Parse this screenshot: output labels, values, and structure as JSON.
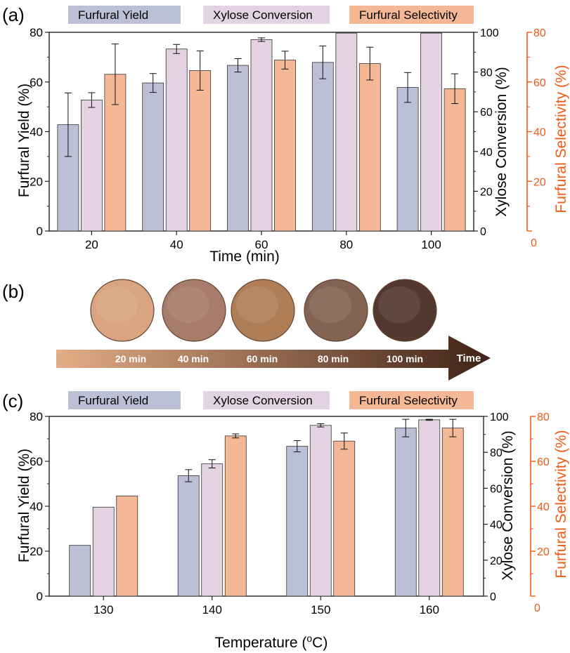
{
  "chart_data": [
    {
      "type": "bar",
      "panel_label": "(a)",
      "categories": [
        "20",
        "40",
        "60",
        "80",
        "100"
      ],
      "xlabel": "Time (min)",
      "ylabel_left": "Furfural Yield (%)",
      "ylabel_right1": "Xylose Conversion (%)",
      "ylabel_right2": "Furfural Selectivity (%)",
      "ylim_left": [
        0,
        80
      ],
      "ylim_right1": [
        0,
        100
      ],
      "ylim_right2": [
        0,
        80
      ],
      "yticks_left": [
        "0",
        "20",
        "40",
        "60",
        "80"
      ],
      "yticks_right1": [
        "0",
        "20",
        "40",
        "60",
        "80",
        "100"
      ],
      "yticks_right2": [
        "0",
        "20",
        "40",
        "60",
        "80"
      ],
      "legend_position": "top",
      "series": [
        {
          "name": "Furfural Yield",
          "color": "#bcc0d4",
          "axis": "left",
          "values": [
            42.8,
            59.6,
            66.7,
            67.9,
            57.8
          ],
          "errors": [
            12.8,
            3.8,
            2.7,
            6.6,
            6.0
          ]
        },
        {
          "name": "Xylose Conversion",
          "color": "#e3d2e1",
          "axis": "right1",
          "values": [
            65.9,
            91.6,
            96.3,
            99.6,
            99.6
          ],
          "errors": [
            3.7,
            2.3,
            0.9,
            0,
            0
          ]
        },
        {
          "name": "Furfural Selectivity",
          "color": "#f5b896",
          "axis": "right2",
          "values": [
            63.1,
            64.6,
            68.8,
            67.4,
            57.3
          ],
          "errors": [
            12.2,
            7.9,
            3.6,
            6.6,
            6.0
          ]
        }
      ]
    },
    {
      "type": "bar",
      "panel_label": "(c)",
      "categories": [
        "130",
        "140",
        "150",
        "160"
      ],
      "xlabel": "Temperature (oC)",
      "xlabel_main": "Temperature (",
      "xlabel_sup": "o",
      "xlabel_end": "C)",
      "ylabel_left": "Furfural Yield (%)",
      "ylabel_right1": "Xylose Conversion (%)",
      "ylabel_right2": "Furfural Selectivity (%)",
      "ylim_left": [
        0,
        80
      ],
      "ylim_right1": [
        0,
        100
      ],
      "ylim_right2": [
        0,
        80
      ],
      "yticks_left": [
        "0",
        "20",
        "40",
        "60",
        "80"
      ],
      "yticks_right1": [
        "0",
        "20",
        "40",
        "60",
        "80",
        "100"
      ],
      "yticks_right2": [
        "0",
        "20",
        "40",
        "60",
        "80"
      ],
      "legend_position": "top",
      "series": [
        {
          "name": "Furfural Yield",
          "color": "#bcc0d4",
          "axis": "left",
          "values": [
            22.6,
            53.6,
            66.7,
            74.8
          ],
          "errors": [
            0,
            2.7,
            2.5,
            3.9
          ]
        },
        {
          "name": "Xylose Conversion",
          "color": "#e3d2e1",
          "axis": "right1",
          "values": [
            49.5,
            73.6,
            95.0,
            98.1
          ],
          "errors": [
            0,
            2.3,
            0.9,
            0.3
          ]
        },
        {
          "name": "Furfural Selectivity",
          "color": "#f5b896",
          "axis": "right2",
          "values": [
            44.6,
            71.3,
            69.0,
            74.8
          ],
          "errors": [
            0,
            0.9,
            3.6,
            3.9
          ]
        }
      ]
    }
  ],
  "panel_b": {
    "label": "(b)",
    "arrow_label": "Time",
    "samples": [
      {
        "label": "20 min",
        "color": "#d9a07a"
      },
      {
        "label": "40 min",
        "color": "#a47563"
      },
      {
        "label": "60 min",
        "color": "#ac784e"
      },
      {
        "label": "80 min",
        "color": "#7d5c4a"
      },
      {
        "label": "100 min",
        "color": "#4a2e24"
      }
    ],
    "gradient_start": "#e3ad86",
    "gradient_end": "#3f2216"
  },
  "colors": {
    "axis_right2": "#f05a14",
    "axis": "#222222"
  }
}
